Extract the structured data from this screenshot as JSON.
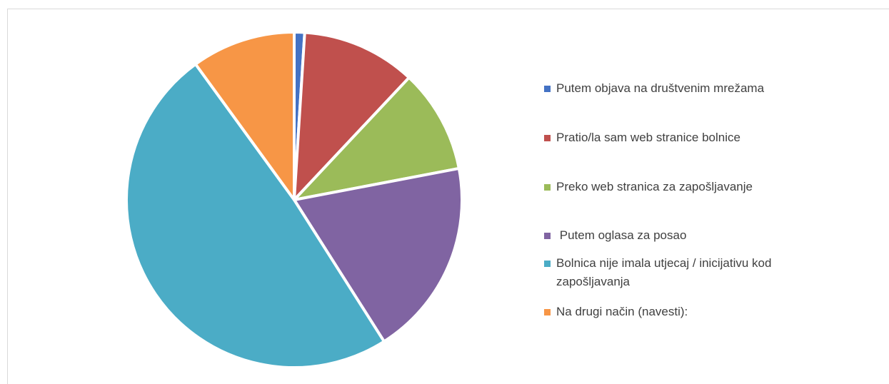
{
  "chart_data": {
    "type": "pie",
    "categories": [
      "Putem objava na društvenim mrežama",
      "Pratio/la sam web stranice bolnice",
      "Preko web stranica za zapošljavanje",
      " Putem oglasa za posao",
      "Bolnica nije imala utjecaj / inicijativu kod zapošljavanja",
      "Na drugi način (navesti):"
    ],
    "values": [
      1,
      11,
      10,
      19,
      49,
      10
    ],
    "colors": [
      "#4472c4",
      "#c0504d",
      "#9bbb59",
      "#8064a2",
      "#4bacc6",
      "#f79646"
    ],
    "legend": "right"
  }
}
